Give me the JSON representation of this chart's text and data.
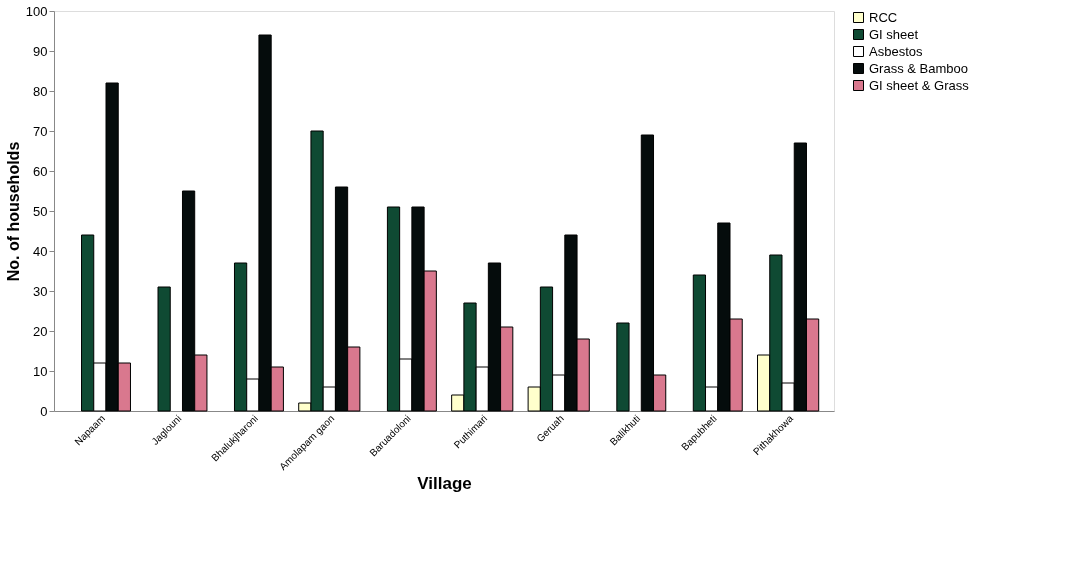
{
  "chart_data": {
    "type": "bar",
    "xlabel": "Village",
    "ylabel": "No. of households",
    "categories": [
      "Napaam",
      "Jaglouni",
      "Bhalukjharoni",
      "Amolapam gaon",
      "Baruadoloni",
      "Puthimari",
      "Geruah",
      "Balikhuti",
      "Bapubheti",
      "Pithakhowa"
    ],
    "series": [
      {
        "name": "RCC",
        "color": "#ffffcc",
        "values": [
          null,
          null,
          null,
          2,
          null,
          4,
          6,
          null,
          null,
          14
        ]
      },
      {
        "name": "GI sheet",
        "color": "#0f4a33",
        "values": [
          44,
          31,
          37,
          70,
          51,
          27,
          31,
          22,
          34,
          39
        ]
      },
      {
        "name": "Asbestos",
        "color": "#ffffff",
        "values": [
          12,
          null,
          8,
          6,
          13,
          11,
          9,
          null,
          6,
          7
        ]
      },
      {
        "name": "Grass & Bamboo",
        "color": "#050c0c",
        "values": [
          82,
          55,
          94,
          56,
          51,
          37,
          44,
          69,
          47,
          67
        ]
      },
      {
        "name": "GI sheet & Grass",
        "color": "#d9788e",
        "values": [
          12,
          14,
          11,
          16,
          35,
          21,
          18,
          9,
          23,
          23
        ]
      }
    ],
    "ylim": [
      0,
      100
    ],
    "yticks": [
      0,
      10,
      20,
      30,
      40,
      50,
      60,
      70,
      80,
      90,
      100
    ],
    "grid": false,
    "legend": "right"
  }
}
